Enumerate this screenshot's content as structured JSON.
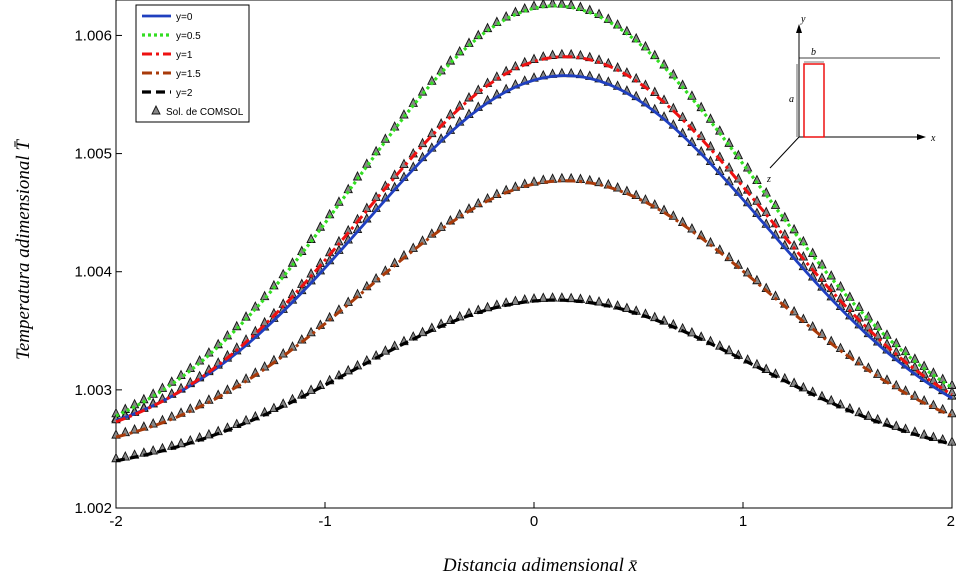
{
  "chart_data": {
    "type": "line",
    "title": "",
    "xlabel": "Distancia adimensional x̄",
    "ylabel": "Temperatura adimensional T̄",
    "xlim": [
      -2,
      2
    ],
    "ylim": [
      1.002,
      1.0063
    ],
    "x_ticks": [
      -2,
      -1,
      0,
      1,
      2
    ],
    "x_tick_labels": [
      "-2",
      "-1",
      "0",
      "1",
      "2"
    ],
    "y_ticks": [
      1.002,
      1.003,
      1.004,
      1.005,
      1.006
    ],
    "y_tick_labels": [
      "1.002",
      "1.003",
      "1.004",
      "1.005",
      "1.006"
    ],
    "grid": false,
    "legend_position": "top-left",
    "series": [
      {
        "name": "y=0",
        "color": "#1f3fbf",
        "style": "solid",
        "peak_x": 0.15,
        "values_at_peak": 1.00566,
        "values_at_left": 1.00274,
        "values_at_right": 1.00293
      },
      {
        "name": "y=0.5",
        "color": "#33dd22",
        "style": "dotted",
        "peak_x": 0.1,
        "values_at_peak": 1.00625,
        "values_at_left": 1.00278,
        "values_at_right": 1.00302
      },
      {
        "name": "y=1",
        "color": "#ee1111",
        "style": "dashdot",
        "peak_x": 0.15,
        "values_at_peak": 1.00582,
        "values_at_left": 1.00273,
        "values_at_right": 1.00296
      },
      {
        "name": "y=1.5",
        "color": "#a83a0a",
        "style": "dashdot",
        "peak_x": 0.15,
        "values_at_peak": 1.00477,
        "values_at_left": 1.0026,
        "values_at_right": 1.00278
      },
      {
        "name": "y=2",
        "color": "#000000",
        "style": "dashed",
        "peak_x": 0.1,
        "values_at_peak": 1.00376,
        "values_at_left": 1.0024,
        "values_at_right": 1.00254
      }
    ],
    "markers": {
      "name": "Sol. de COMSOL",
      "color": "#333333",
      "shape": "triangle"
    },
    "inset": {
      "labels": [
        "y",
        "x",
        "z",
        "a",
        "b"
      ]
    }
  }
}
